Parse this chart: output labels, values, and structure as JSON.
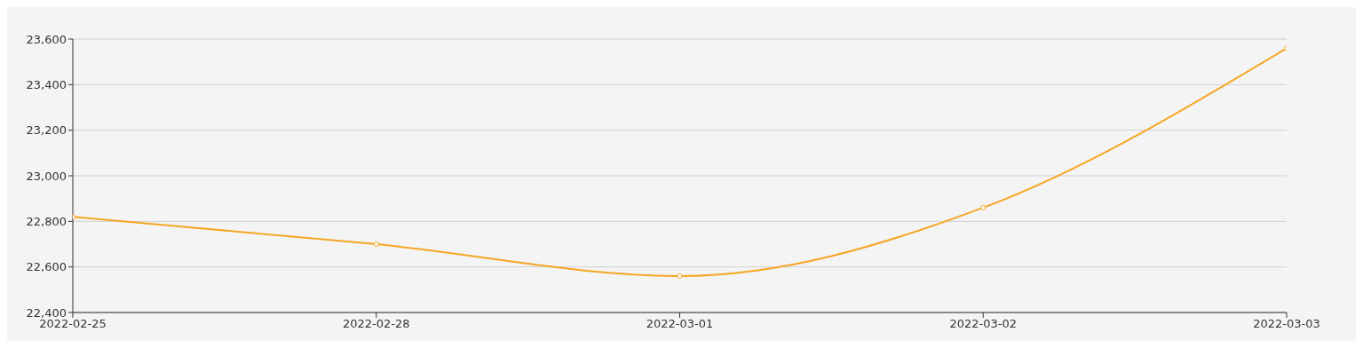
{
  "chart_data": {
    "type": "line",
    "categories": [
      "2022-02-25",
      "2022-02-28",
      "2022-03-01",
      "2022-03-02",
      "2022-03-03"
    ],
    "series": [
      {
        "color": "#f5a623",
        "values": [
          22820,
          22700,
          22560,
          22860,
          23560
        ]
      }
    ],
    "ylim": [
      22400,
      23600
    ],
    "yticks": [
      {
        "value": 22400,
        "label": "22,400"
      },
      {
        "value": 22600,
        "label": "22,600"
      },
      {
        "value": 22800,
        "label": "22,800"
      },
      {
        "value": 23000,
        "label": "23,000"
      },
      {
        "value": 23200,
        "label": "23,200"
      },
      {
        "value": 23400,
        "label": "23,400"
      },
      {
        "value": 23600,
        "label": "23,600"
      }
    ],
    "grid": "y",
    "marker": "circle",
    "line_style": "solid"
  }
}
